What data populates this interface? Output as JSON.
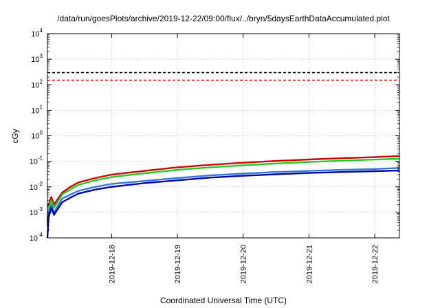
{
  "chart_data": {
    "type": "line",
    "title": "/data/run/goesPlots/archive/2019-12-22/09:00/flux/../bryn/5daysEarthDataAccumulated.plot",
    "xlabel": "Coordinated Universal Time (UTC)",
    "ylabel": "cGy",
    "y_scale": "log",
    "ylim": [
      0.0001,
      10000
    ],
    "xlim": [
      "2019-12-17 00:36",
      "2019-12-22 09:00"
    ],
    "grid": true,
    "y_ticks": [
      {
        "value": 0.0001,
        "base": "10",
        "exp": "-4"
      },
      {
        "value": 0.001,
        "base": "10",
        "exp": "-3"
      },
      {
        "value": 0.01,
        "base": "10",
        "exp": "-2"
      },
      {
        "value": 0.1,
        "base": "10",
        "exp": "-1"
      },
      {
        "value": 1,
        "base": "10",
        "exp": "0"
      },
      {
        "value": 10,
        "base": "10",
        "exp": "1"
      },
      {
        "value": 100,
        "base": "10",
        "exp": "2"
      },
      {
        "value": 1000,
        "base": "10",
        "exp": "3"
      },
      {
        "value": 10000,
        "base": "10",
        "exp": "4"
      }
    ],
    "x_ticks": [
      "2019-12-18",
      "2019-12-19",
      "2019-12-20",
      "2019-12-21",
      "2019-12-22"
    ],
    "reference_lines": [
      {
        "y": 300,
        "color": "#000000",
        "style": "dashed"
      },
      {
        "y": 150,
        "color": "#ff0000",
        "style": "dashed"
      }
    ],
    "series": [
      {
        "color": "#cc0000",
        "x": [
          "2019-12-17 00:36",
          "2019-12-17 01:00",
          "2019-12-17 02:00",
          "2019-12-17 03:00",
          "2019-12-17 06:00",
          "2019-12-17 09:00",
          "2019-12-17 12:00",
          "2019-12-17 18:00",
          "2019-12-18 00:00",
          "2019-12-18 12:00",
          "2019-12-19 00:00",
          "2019-12-19 12:00",
          "2019-12-20 00:00",
          "2019-12-20 12:00",
          "2019-12-21 00:00",
          "2019-12-21 12:00",
          "2019-12-22 00:00",
          "2019-12-22 09:00"
        ],
        "y": [
          0.0005,
          0.002,
          0.004,
          0.002,
          0.006,
          0.01,
          0.015,
          0.022,
          0.03,
          0.042,
          0.058,
          0.073,
          0.088,
          0.103,
          0.118,
          0.132,
          0.145,
          0.16
        ]
      },
      {
        "color": "#22cc22",
        "x": [
          "2019-12-17 00:36",
          "2019-12-17 01:00",
          "2019-12-17 02:00",
          "2019-12-17 03:00",
          "2019-12-17 06:00",
          "2019-12-17 09:00",
          "2019-12-17 12:00",
          "2019-12-17 18:00",
          "2019-12-18 00:00",
          "2019-12-18 12:00",
          "2019-12-19 00:00",
          "2019-12-19 12:00",
          "2019-12-20 00:00",
          "2019-12-20 12:00",
          "2019-12-21 00:00",
          "2019-12-21 12:00",
          "2019-12-22 00:00",
          "2019-12-22 09:00"
        ],
        "y": [
          0.0004,
          0.0015,
          0.003,
          0.0015,
          0.005,
          0.008,
          0.012,
          0.018,
          0.024,
          0.034,
          0.046,
          0.058,
          0.07,
          0.082,
          0.094,
          0.106,
          0.117,
          0.125
        ]
      },
      {
        "color": "#3377dd",
        "x": [
          "2019-12-17 00:36",
          "2019-12-17 01:00",
          "2019-12-17 02:00",
          "2019-12-17 03:00",
          "2019-12-17 06:00",
          "2019-12-17 09:00",
          "2019-12-17 12:00",
          "2019-12-17 18:00",
          "2019-12-18 00:00",
          "2019-12-18 12:00",
          "2019-12-19 00:00",
          "2019-12-19 12:00",
          "2019-12-20 00:00",
          "2019-12-20 12:00",
          "2019-12-21 00:00",
          "2019-12-21 12:00",
          "2019-12-22 00:00",
          "2019-12-22 09:00"
        ],
        "y": [
          0.0003,
          0.001,
          0.002,
          0.001,
          0.0035,
          0.005,
          0.007,
          0.01,
          0.013,
          0.017,
          0.022,
          0.028,
          0.033,
          0.038,
          0.042,
          0.046,
          0.05,
          0.055
        ]
      },
      {
        "color": "#0000aa",
        "x": [
          "2019-12-17 00:36",
          "2019-12-17 01:00",
          "2019-12-17 02:00",
          "2019-12-17 03:00",
          "2019-12-17 06:00",
          "2019-12-17 09:00",
          "2019-12-17 12:00",
          "2019-12-17 18:00",
          "2019-12-18 00:00",
          "2019-12-18 12:00",
          "2019-12-19 00:00",
          "2019-12-19 12:00",
          "2019-12-20 00:00",
          "2019-12-20 12:00",
          "2019-12-21 00:00",
          "2019-12-21 12:00",
          "2019-12-22 00:00",
          "2019-12-22 09:00"
        ],
        "y": [
          0.0001,
          0.0006,
          0.0015,
          0.0008,
          0.0025,
          0.0038,
          0.0055,
          0.0078,
          0.01,
          0.014,
          0.018,
          0.023,
          0.027,
          0.031,
          0.035,
          0.038,
          0.041,
          0.044
        ]
      }
    ]
  }
}
